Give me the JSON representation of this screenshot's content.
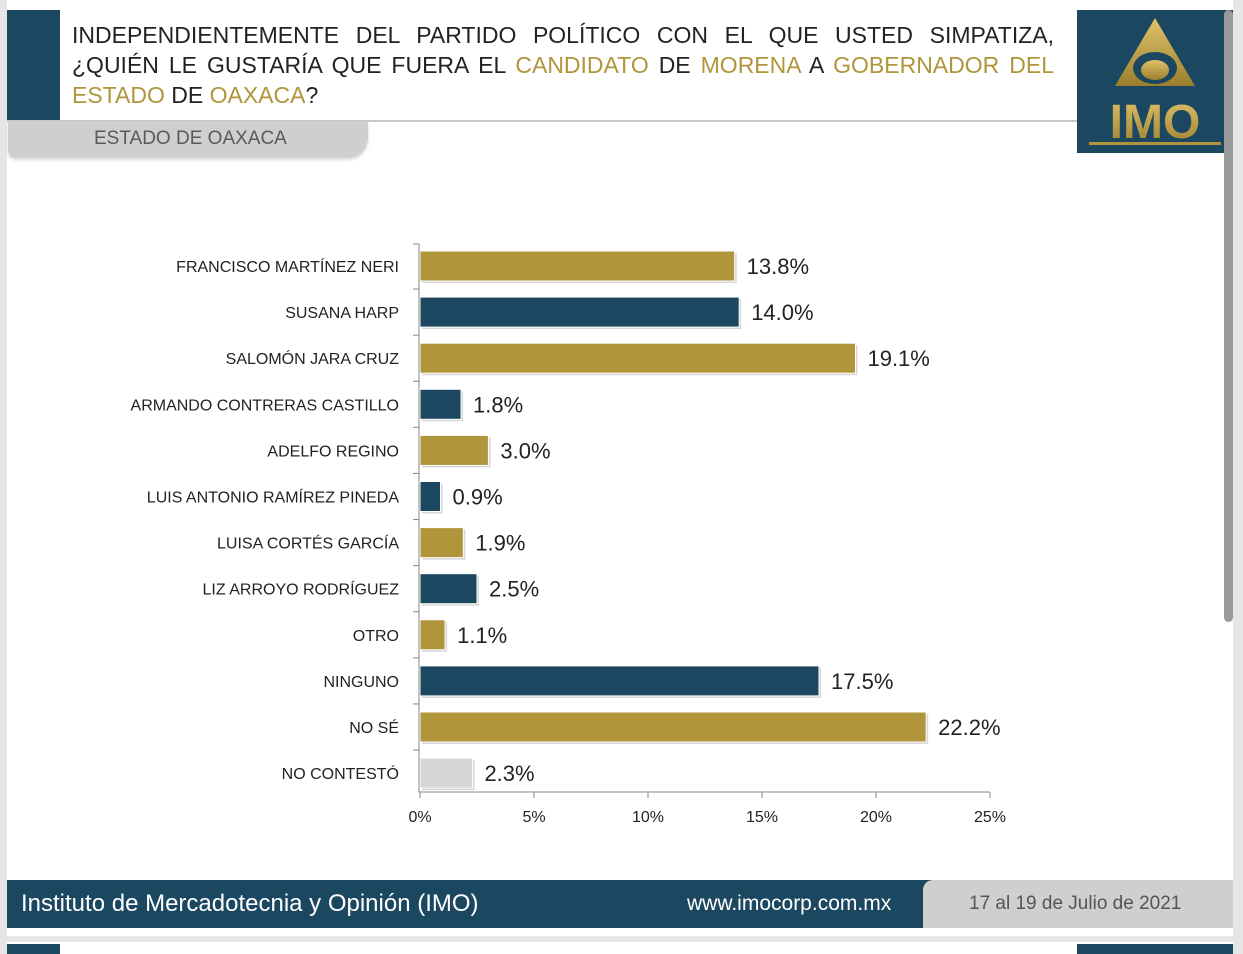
{
  "header": {
    "title_parts": [
      {
        "text": "INDEPENDIENTEMENTE DEL PARTIDO POLÍTICO CON EL QUE USTED SIMPATIZA, ¿QUIÉN LE GUSTARÍA QUE FUERA EL ",
        "highlight": false
      },
      {
        "text": "CANDIDATO",
        "highlight": true
      },
      {
        "text": " DE ",
        "highlight": false
      },
      {
        "text": "MORENA",
        "highlight": true
      },
      {
        "text": "  A ",
        "highlight": false
      },
      {
        "text": "GOBERNADOR DEL ESTADO",
        "highlight": true
      },
      {
        "text": " DE ",
        "highlight": false
      },
      {
        "text": "OAXACA",
        "highlight": true
      },
      {
        "text": "?",
        "highlight": false
      }
    ],
    "region": "ESTADO DE OAXACA"
  },
  "logo": {
    "text": "IMO"
  },
  "colors": {
    "gold": "#b0953a",
    "navy": "#1c4760",
    "gray": "#d6d6d6"
  },
  "chart_data": {
    "type": "bar",
    "orientation": "horizontal",
    "categories": [
      "FRANCISCO MARTÍNEZ NERI",
      "SUSANA HARP",
      "SALOMÓN JARA CRUZ",
      "ARMANDO CONTRERAS CASTILLO",
      "ADELFO REGINO",
      "LUIS ANTONIO RAMÍREZ PINEDA",
      "LUISA CORTÉS GARCÍA",
      "LIZ ARROYO RODRÍGUEZ",
      "OTRO",
      "NINGUNO",
      "NO SÉ",
      "NO CONTESTÓ"
    ],
    "values": [
      13.8,
      14.0,
      19.1,
      1.8,
      3.0,
      0.9,
      1.9,
      2.5,
      1.1,
      17.5,
      22.2,
      2.3
    ],
    "value_labels": [
      "13.8%",
      "14.0%",
      "19.1%",
      "1.8%",
      "3.0%",
      "0.9%",
      "1.9%",
      "2.5%",
      "1.1%",
      "17.5%",
      "22.2%",
      "2.3%"
    ],
    "bar_colors": [
      "gold",
      "navy",
      "gold",
      "navy",
      "gold",
      "navy",
      "gold",
      "navy",
      "gold",
      "navy",
      "gold",
      "gray"
    ],
    "xlim": [
      0,
      25
    ],
    "xticks": [
      0,
      5,
      10,
      15,
      20,
      25
    ],
    "xtick_labels": [
      "0%",
      "5%",
      "10%",
      "15%",
      "20%",
      "25%"
    ],
    "grid": false,
    "legend": "none"
  },
  "footer": {
    "organization": "Instituto de Mercadotecnia y Opinión (IMO)",
    "url": "www.imocorp.com.mx",
    "date": "17 al 19 de Julio de 2021"
  }
}
